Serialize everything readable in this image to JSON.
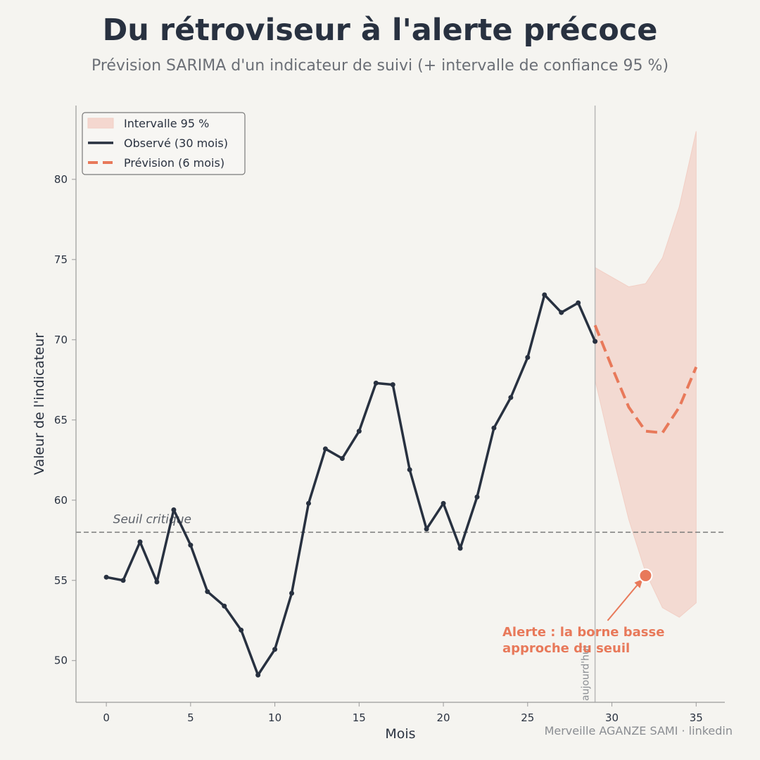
{
  "title": "Du rétroviseur à l'alerte précoce",
  "subtitle": "Prévision SARIMA d'un indicateur de suivi (+ intervalle de confiance 95 %)",
  "credit": "Merveille AGANZE SAMI · linkedin",
  "colors": {
    "observed": "#283140",
    "forecast": "#e8795a",
    "band": "#f2cfc5",
    "threshold": "#7a7a7a",
    "today": "#b8b8b8",
    "background": "#f5f4f0"
  },
  "chart_data": {
    "type": "line",
    "title": "Du rétroviseur à l'alerte précoce",
    "subtitle": "Prévision SARIMA d'un indicateur de suivi (+ intervalle de confiance 95 %)",
    "xlabel": "Mois",
    "ylabel": "Valeur de l'indicateur",
    "xlim": [
      -1.8,
      36.7
    ],
    "ylim": [
      47.4,
      84.6
    ],
    "xticks": [
      0,
      5,
      10,
      15,
      20,
      25,
      30,
      35
    ],
    "yticks": [
      50,
      55,
      60,
      65,
      70,
      75,
      80
    ],
    "grid": false,
    "legend_position": "top-left",
    "legend": [
      {
        "key": "band",
        "label": "Intervalle 95 %"
      },
      {
        "key": "observed",
        "label": "Observé (30 mois)"
      },
      {
        "key": "forecast",
        "label": "Prévision (6 mois)"
      }
    ],
    "observed": {
      "name": "Observé (30 mois)",
      "x": [
        0,
        1,
        2,
        3,
        4,
        5,
        6,
        7,
        8,
        9,
        10,
        11,
        12,
        13,
        14,
        15,
        16,
        17,
        18,
        19,
        20,
        21,
        22,
        23,
        24,
        25,
        26,
        27,
        28,
        29
      ],
      "y": [
        55.2,
        55.0,
        57.4,
        54.9,
        59.4,
        57.2,
        54.3,
        53.4,
        51.9,
        49.1,
        50.7,
        54.2,
        59.8,
        63.2,
        62.6,
        64.3,
        67.3,
        67.2,
        61.9,
        58.2,
        59.8,
        57.0,
        60.2,
        64.5,
        66.4,
        68.9,
        72.8,
        71.7,
        72.3,
        69.9
      ]
    },
    "forecast": {
      "name": "Prévision (6 mois)",
      "x": [
        29,
        30,
        31,
        32,
        33,
        34,
        35
      ],
      "y": [
        70.9,
        68.3,
        65.8,
        64.3,
        64.2,
        65.8,
        68.3
      ]
    },
    "interval_95": {
      "name": "Intervalle 95 %",
      "x": [
        29,
        30,
        31,
        32,
        33,
        34,
        35
      ],
      "lower": [
        67.5,
        63.0,
        58.8,
        55.5,
        53.3,
        52.7,
        53.6
      ],
      "upper": [
        74.5,
        73.9,
        73.3,
        73.5,
        75.1,
        78.3,
        83.0
      ]
    },
    "threshold": {
      "value": 58.0,
      "label": "Seuil critique"
    },
    "today_marker": {
      "x": 29,
      "label": "aujourd'hui"
    },
    "alert": {
      "x": 32,
      "y": 55.3,
      "text_lines": [
        "Alerte : la borne basse",
        "approche du seuil"
      ]
    }
  }
}
